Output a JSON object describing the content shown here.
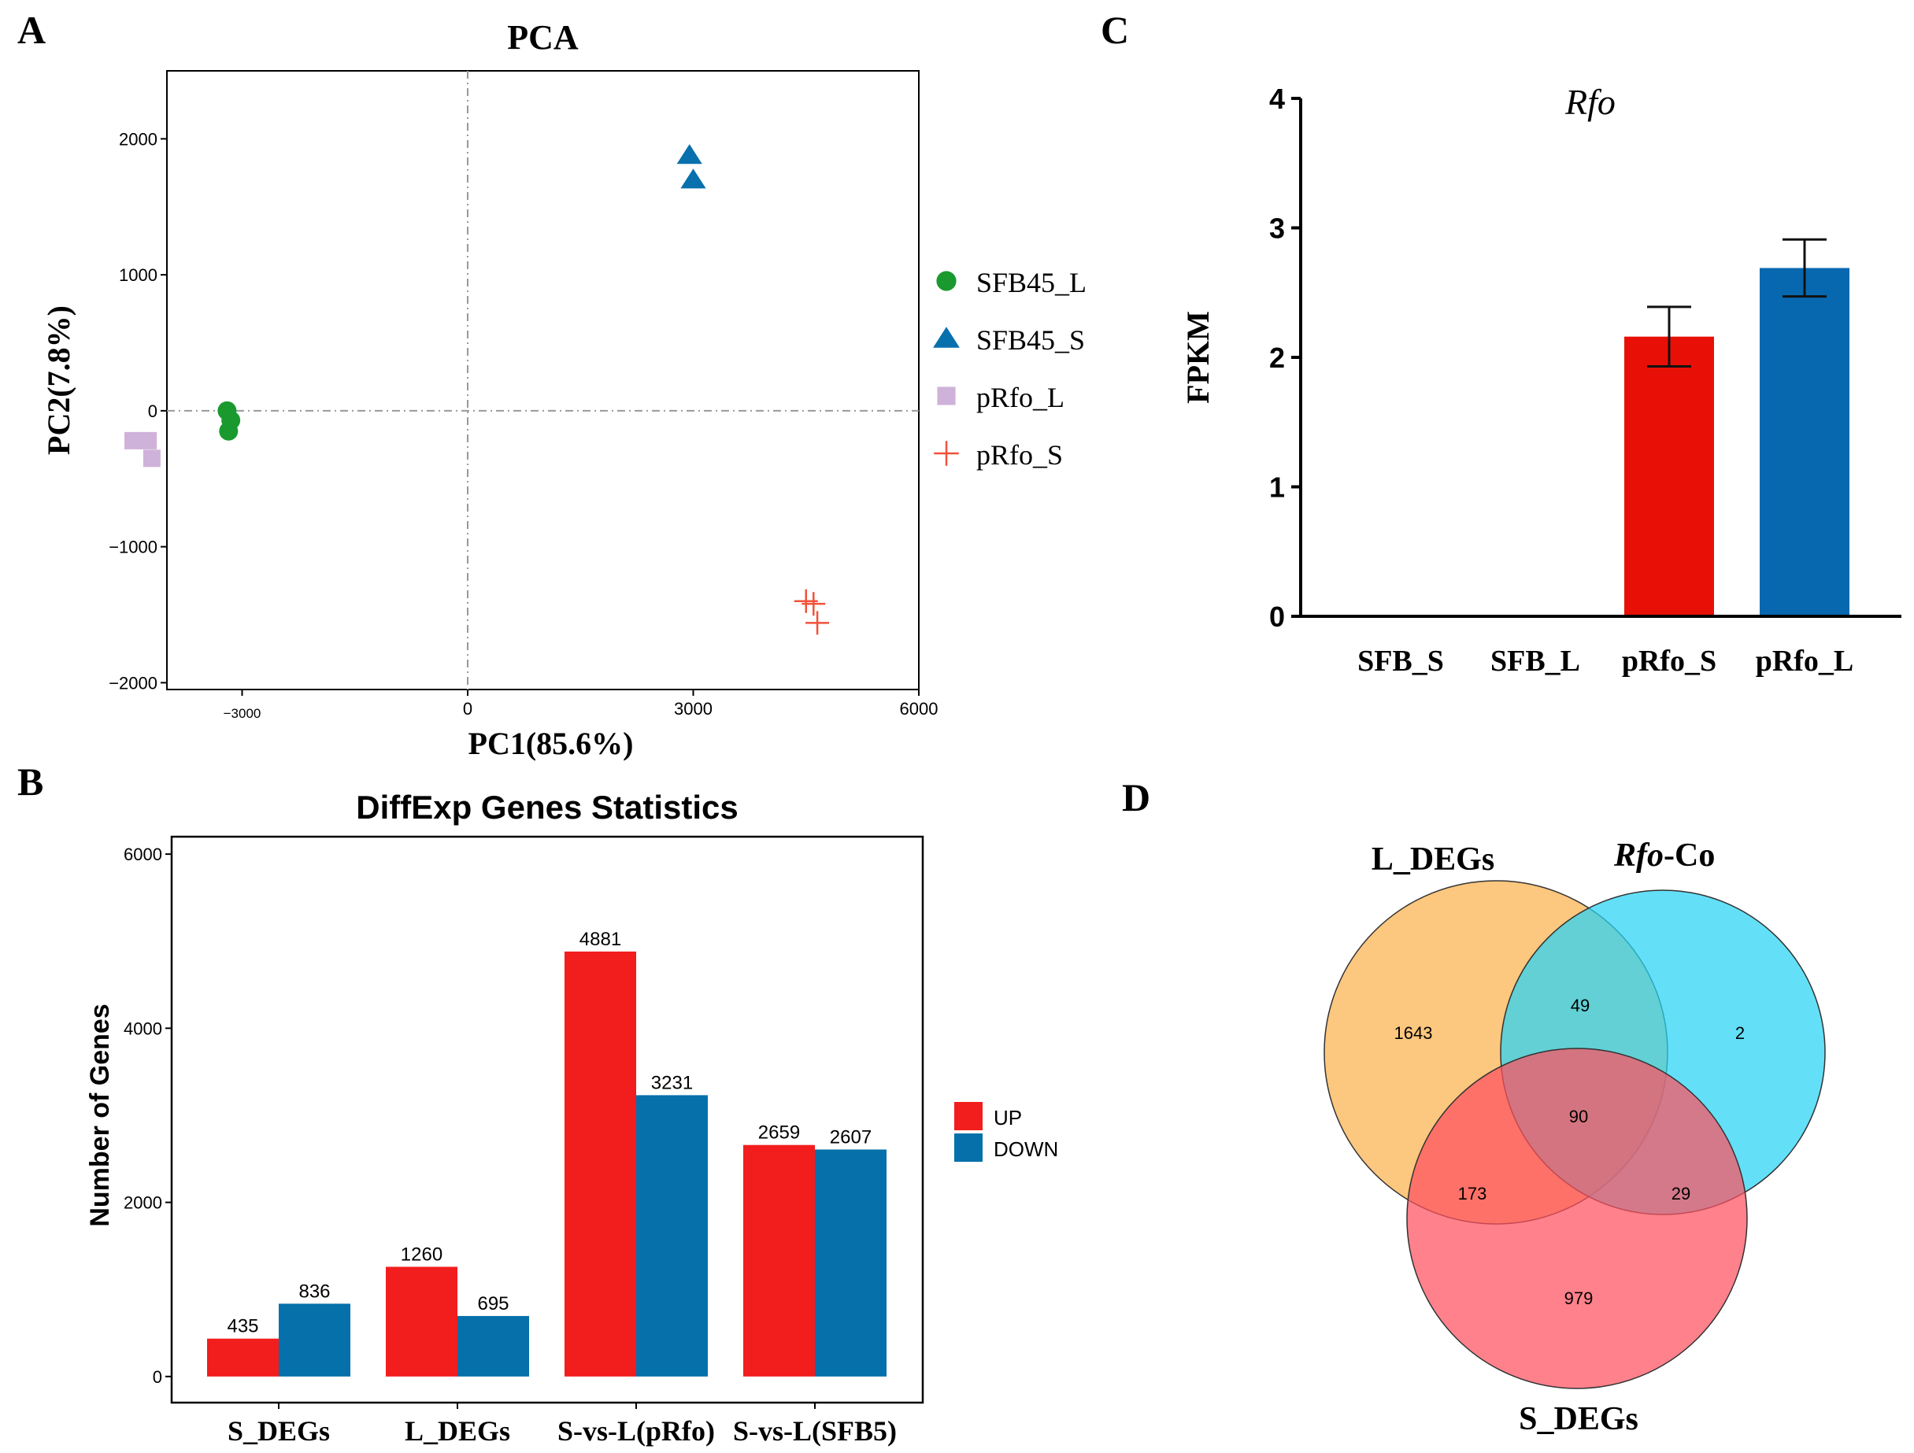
{
  "panels": {
    "a": "A",
    "b": "B",
    "c": "C",
    "d": "D"
  },
  "colors": {
    "green": "#1a9a2e",
    "blue": "#0870ad",
    "lilac": "#cfb2d9",
    "orange_red": "#f2513a",
    "bar_red": "#f21d1d",
    "bar_blue": "#0570aa",
    "c_red": "#e81006",
    "c_blue": "#0768af",
    "venn_orange": "#fbb14c",
    "venn_cyan": "#27d4f5",
    "venn_red": "#ff5060"
  },
  "chart_data": [
    {
      "id": "A",
      "type": "scatter",
      "title": "PCA",
      "xlabel": "PC1(85.6%)",
      "ylabel": "PC2(7.8%)",
      "xlim": [
        -4000,
        6000
      ],
      "ylim": [
        -2050,
        2500
      ],
      "xticks": [
        -3000,
        0,
        3000,
        6000
      ],
      "xtick_labels": [
        "−3000",
        "0",
        "3000",
        "6000"
      ],
      "yticks": [
        2000,
        1000,
        0,
        -1000,
        -2000
      ],
      "ytick_labels": [
        "2000",
        "1000",
        "0",
        "−1000",
        "−2000"
      ],
      "reference_lines": {
        "x": 0,
        "y": 0
      },
      "legend_position": "right",
      "series": [
        {
          "name": "SFB45_L",
          "marker": "circle",
          "color": "#1a9a2e",
          "points": [
            [
              -3200,
              0
            ],
            [
              -3150,
              -70
            ],
            [
              -3180,
              -150
            ]
          ]
        },
        {
          "name": "SFB45_S",
          "marker": "triangle",
          "color": "#0870ad",
          "points": [
            [
              2950,
              1880
            ],
            [
              3000,
              1700
            ]
          ]
        },
        {
          "name": "pRfo_L",
          "marker": "square",
          "color": "#cfb2d9",
          "points": [
            [
              -4450,
              -220
            ],
            [
              -4250,
              -220
            ],
            [
              -4200,
              -350
            ]
          ]
        },
        {
          "name": "pRfo_S",
          "marker": "plus",
          "color": "#f2513a",
          "points": [
            [
              4500,
              -1400
            ],
            [
              4600,
              -1420
            ],
            [
              4650,
              -1560
            ]
          ]
        }
      ]
    },
    {
      "id": "B",
      "type": "bar",
      "title": "DiffExp Genes Statistics",
      "xlabel": "",
      "ylabel": "Number of Genes",
      "ylim": [
        -300,
        6200
      ],
      "yticks": [
        0,
        2000,
        4000,
        6000
      ],
      "ytick_labels": [
        "0",
        "2000",
        "4000",
        "6000"
      ],
      "categories": [
        "S_DEGs",
        "L_DEGs",
        "S-vs-L(pRfo)",
        "S-vs-L(SFB5)"
      ],
      "legend_position": "right",
      "series": [
        {
          "name": "UP",
          "color": "#f21d1d",
          "values": [
            435,
            1260,
            4881,
            2659
          ]
        },
        {
          "name": "DOWN",
          "color": "#0570aa",
          "values": [
            836,
            695,
            3231,
            2607
          ]
        }
      ]
    },
    {
      "id": "C",
      "type": "bar",
      "title": "Rfo",
      "xlabel": "",
      "ylabel": "FPKM",
      "ylim": [
        0,
        4
      ],
      "yticks": [
        0,
        1,
        2,
        3,
        4
      ],
      "ytick_labels": [
        "0",
        "1",
        "2",
        "3",
        "4"
      ],
      "categories": [
        "SFB_S",
        "SFB_L",
        "pRfo_S",
        "pRfo_L"
      ],
      "values": [
        0,
        0,
        2.16,
        2.69
      ],
      "errors": [
        0,
        0,
        0.23,
        0.22
      ],
      "bar_colors": [
        "#e81006",
        "#0768af",
        "#e81006",
        "#0768af"
      ]
    },
    {
      "id": "D",
      "type": "venn",
      "sets": [
        {
          "name": "L_DEGs",
          "color": "#fbb14c"
        },
        {
          "name_italic": "Rfo",
          "name_suffix": "-Co",
          "color": "#27d4f5"
        },
        {
          "name": "S_DEGs",
          "color": "#ff5060"
        }
      ],
      "regions": {
        "L_only": "1643",
        "Co_only": "2",
        "L_Co": "49",
        "all_three": "90",
        "L_S": "173",
        "Co_S": "29",
        "S_only": "979"
      }
    }
  ]
}
